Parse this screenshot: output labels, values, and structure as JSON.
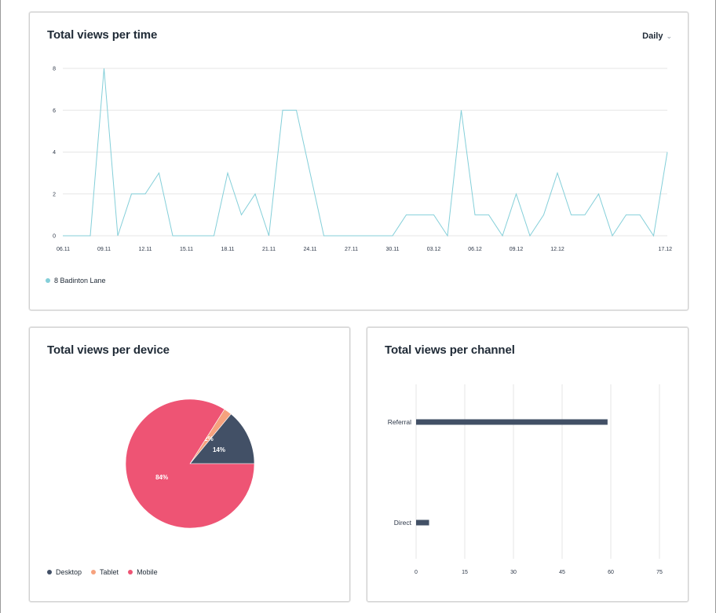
{
  "line_card": {
    "title": "Total views per time",
    "dropdown_label": "Daily",
    "legend_label": "8 Badinton Lane"
  },
  "pie_card": {
    "title": "Total views per device"
  },
  "bar_card": {
    "title": "Total views per channel"
  },
  "colors": {
    "line": "#84cfd9",
    "grid": "#e6e6e6",
    "desktop": "#425066",
    "tablet": "#f6a27e",
    "mobile": "#ee5474",
    "bar": "#425066"
  },
  "chart_data": [
    {
      "type": "line",
      "title": "Total views per time",
      "x_tick_labels": [
        "06.11",
        "09.11",
        "12.11",
        "15.11",
        "18.11",
        "21.11",
        "24.11",
        "27.11",
        "30.11",
        "03.12",
        "06.12",
        "09.12",
        "12.12",
        "17.12"
      ],
      "ylim": [
        0,
        8
      ],
      "y_ticks": [
        0,
        2,
        4,
        6,
        8
      ],
      "grid": true,
      "legend_position": "bottom-left",
      "series": [
        {
          "name": "8 Badinton Lane",
          "values": [
            0,
            0,
            0,
            8,
            0,
            2,
            2,
            3,
            0,
            0,
            0,
            0,
            3,
            1,
            2,
            0,
            6,
            6,
            3,
            0,
            0,
            0,
            0,
            0,
            0,
            1,
            1,
            1,
            0,
            6,
            1,
            1,
            0,
            2,
            0,
            1,
            3,
            1,
            1,
            2,
            0,
            1,
            1,
            0,
            4
          ]
        }
      ]
    },
    {
      "type": "pie",
      "title": "Total views per device",
      "legend_position": "bottom-left",
      "slices": [
        {
          "label": "Desktop",
          "value": 14,
          "display": "14%"
        },
        {
          "label": "Tablet",
          "value": 2,
          "display": "2%"
        },
        {
          "label": "Mobile",
          "value": 84,
          "display": "84%"
        }
      ]
    },
    {
      "type": "bar",
      "orientation": "horizontal",
      "title": "Total views per channel",
      "categories": [
        "Referral",
        "Direct"
      ],
      "values": [
        59,
        4
      ],
      "xlim": [
        0,
        75
      ],
      "x_ticks": [
        0,
        15,
        30,
        45,
        60,
        75
      ],
      "grid": true
    }
  ]
}
